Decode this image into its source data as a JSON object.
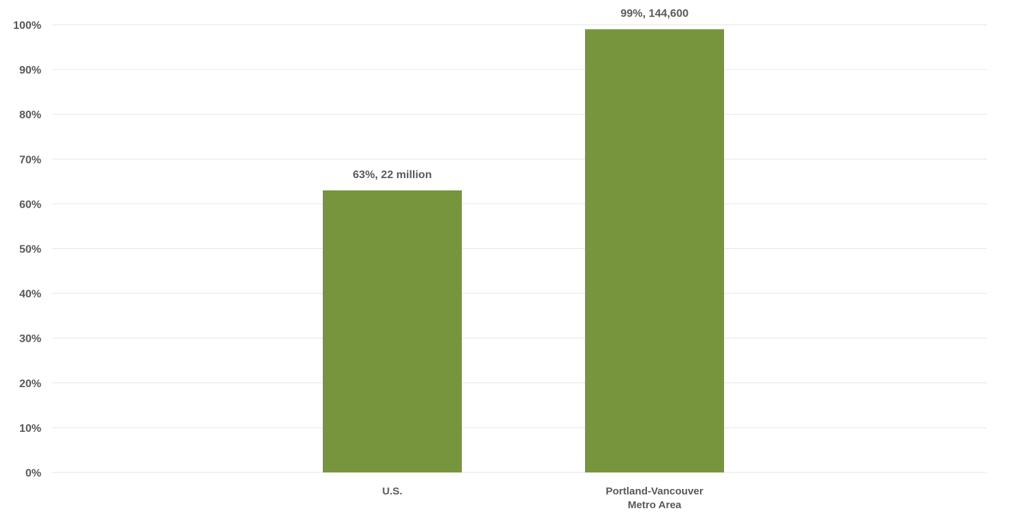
{
  "chart_data": {
    "type": "bar",
    "categories": [
      [
        "U.S."
      ],
      [
        "Portland-Vancouver",
        "Metro Area"
      ]
    ],
    "values": [
      63,
      99
    ],
    "data_labels": [
      "63%, 22 million",
      "99%, 144,600"
    ],
    "title": "",
    "xlabel": "",
    "ylabel": "",
    "ylim": [
      0,
      100
    ],
    "y_ticks": [
      0,
      10,
      20,
      30,
      40,
      50,
      60,
      70,
      80,
      90,
      100
    ],
    "y_tick_format": "%",
    "grid": true,
    "legend": "none",
    "bar_color": "#77953c",
    "gridline_color": "#e6e6e6",
    "text_color": "#595959"
  }
}
